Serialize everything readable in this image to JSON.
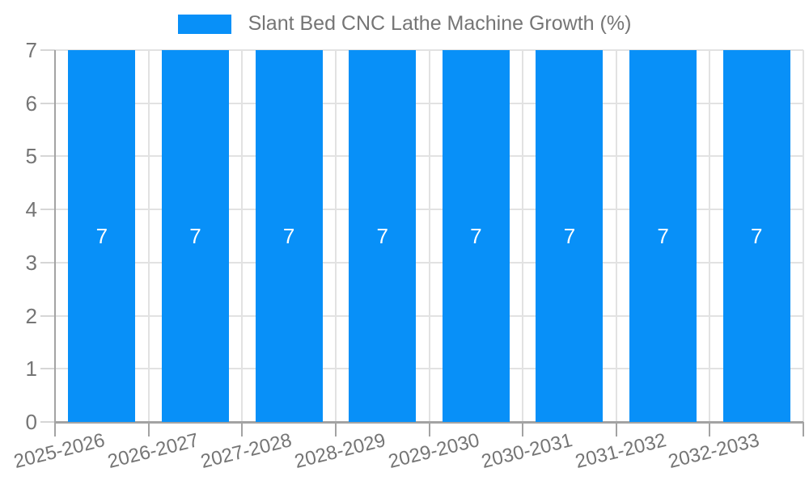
{
  "chart_data": {
    "type": "bar",
    "title": "Slant Bed CNC Lathe Machine Growth (%)",
    "legend": {
      "label": "Slant Bed CNC Lathe Machine Growth (%)",
      "position": "top-center"
    },
    "categories": [
      "2025-2026",
      "2026-2027",
      "2027-2028",
      "2028-2029",
      "2029-2030",
      "2030-2031",
      "2031-2032",
      "2032-2033"
    ],
    "series": [
      {
        "name": "Slant Bed CNC Lathe Machine Growth (%)",
        "values": [
          7,
          7,
          7,
          7,
          7,
          7,
          7,
          7
        ]
      }
    ],
    "bar_labels": [
      "7",
      "7",
      "7",
      "7",
      "7",
      "7",
      "7",
      "7"
    ],
    "xlabel": "",
    "ylabel": "",
    "ylim": [
      0,
      7
    ],
    "yticks": [
      0,
      1,
      2,
      3,
      4,
      5,
      6,
      7
    ],
    "grid": true,
    "x_label_rotation_deg": -14,
    "colors": {
      "bar": "#0890f8",
      "grid": "#e2e2e2",
      "axis": "#a3a3a3",
      "y_tick": "#d6d6d6",
      "text": "#757575",
      "bar_label": "#ffffff",
      "background": "#ffffff"
    }
  }
}
